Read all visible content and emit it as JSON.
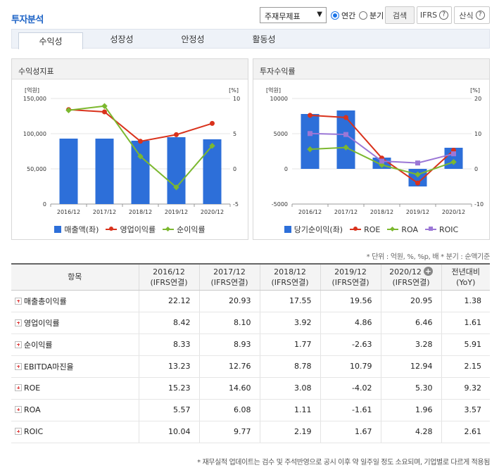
{
  "header": {
    "title": "투자분석",
    "select_value": "주재무제표",
    "radio_annual": "연간",
    "radio_quarter": "분기",
    "search_button": "검색",
    "ifrs_button": "IFRS",
    "formula_button": "산식"
  },
  "tabs": [
    "수익성",
    "성장성",
    "안정성",
    "활동성"
  ],
  "chart1": {
    "title": "수익성지표",
    "left_unit": "[억원]",
    "right_unit": "[%]",
    "left_ticks": [
      "150,000",
      "100,000",
      "50,000",
      "0"
    ],
    "right_ticks": [
      "10",
      "5",
      "0",
      "-5"
    ],
    "legend": [
      "매출액(좌)",
      "영업이익률",
      "순이익률"
    ]
  },
  "chart2": {
    "title": "투자수익률",
    "left_unit": "[억원]",
    "right_unit": "[%]",
    "left_ticks": [
      "10000",
      "5000",
      "0",
      "-5000"
    ],
    "right_ticks": [
      "20",
      "10",
      "0",
      "-10"
    ],
    "legend": [
      "당기순이익(좌)",
      "ROE",
      "ROA",
      "ROIC"
    ]
  },
  "chart_data": [
    {
      "type": "bar+line",
      "title": "수익성지표",
      "categories": [
        "2016/12",
        "2017/12",
        "2018/12",
        "2019/12",
        "2020/12"
      ],
      "ylim_left": [
        0,
        150000
      ],
      "ylim_right": [
        -5,
        10
      ],
      "series": [
        {
          "name": "매출액(좌)",
          "kind": "bar",
          "axis": "left",
          "color": "#2d6fd9",
          "values": [
            93000,
            93000,
            90000,
            95000,
            92000
          ]
        },
        {
          "name": "영업이익률",
          "kind": "line",
          "axis": "right",
          "color": "#d9321c",
          "marker": "circle",
          "values": [
            8.42,
            8.1,
            3.92,
            4.86,
            6.46
          ]
        },
        {
          "name": "순이익률",
          "kind": "line",
          "axis": "right",
          "color": "#7cb82f",
          "marker": "diamond",
          "values": [
            8.33,
            8.93,
            1.77,
            -2.63,
            3.28
          ]
        }
      ]
    },
    {
      "type": "bar+line",
      "title": "투자수익률",
      "categories": [
        "2016/12",
        "2017/12",
        "2018/12",
        "2019/12",
        "2020/12"
      ],
      "ylim_left": [
        -5000,
        10000
      ],
      "ylim_right": [
        -10,
        20
      ],
      "series": [
        {
          "name": "당기순이익(좌)",
          "kind": "bar",
          "axis": "left",
          "color": "#2d6fd9",
          "values": [
            7800,
            8300,
            1600,
            -2500,
            3000
          ]
        },
        {
          "name": "ROE",
          "kind": "line",
          "axis": "right",
          "color": "#d9321c",
          "marker": "circle",
          "values": [
            15.23,
            14.6,
            3.08,
            -4.02,
            5.3
          ]
        },
        {
          "name": "ROA",
          "kind": "line",
          "axis": "right",
          "color": "#7cb82f",
          "marker": "diamond",
          "values": [
            5.57,
            6.08,
            1.11,
            -1.61,
            1.96
          ]
        },
        {
          "name": "ROIC",
          "kind": "line",
          "axis": "right",
          "color": "#9b77d6",
          "marker": "square",
          "values": [
            10.04,
            9.77,
            2.19,
            1.67,
            4.28
          ]
        }
      ]
    }
  ],
  "note": "* 단위 : 억원, %, %p, 배   * 분기 : 순액기준",
  "table": {
    "col_item": "항목",
    "cols": [
      {
        "year": "2016/12",
        "basis": "(IFRS연결)"
      },
      {
        "year": "2017/12",
        "basis": "(IFRS연결)"
      },
      {
        "year": "2018/12",
        "basis": "(IFRS연결)"
      },
      {
        "year": "2019/12",
        "basis": "(IFRS연결)"
      },
      {
        "year": "2020/12",
        "basis": "(IFRS연결)"
      }
    ],
    "col_yoy": {
      "label": "전년대비",
      "sub": "(YoY)"
    },
    "rows": [
      {
        "label": "매출총이익률",
        "values": [
          "22.12",
          "20.93",
          "17.55",
          "19.56",
          "20.95",
          "1.38"
        ]
      },
      {
        "label": "영업이익률",
        "values": [
          "8.42",
          "8.10",
          "3.92",
          "4.86",
          "6.46",
          "1.61"
        ]
      },
      {
        "label": "순이익률",
        "values": [
          "8.33",
          "8.93",
          "1.77",
          "-2.63",
          "3.28",
          "5.91"
        ]
      },
      {
        "label": "EBITDA마진율",
        "values": [
          "13.23",
          "12.76",
          "8.78",
          "10.79",
          "12.94",
          "2.15"
        ]
      },
      {
        "label": "ROE",
        "values": [
          "15.23",
          "14.60",
          "3.08",
          "-4.02",
          "5.30",
          "9.32"
        ]
      },
      {
        "label": "ROA",
        "values": [
          "5.57",
          "6.08",
          "1.11",
          "-1.61",
          "1.96",
          "3.57"
        ]
      },
      {
        "label": "ROIC",
        "values": [
          "10.04",
          "9.77",
          "2.19",
          "1.67",
          "4.28",
          "2.61"
        ]
      }
    ]
  },
  "footnote": "* 재무실적 업데이트는 검수 및 주석반영으로 공시 이후 약 일주일 정도 소요되며, 기업별로 다르게 적용됨"
}
